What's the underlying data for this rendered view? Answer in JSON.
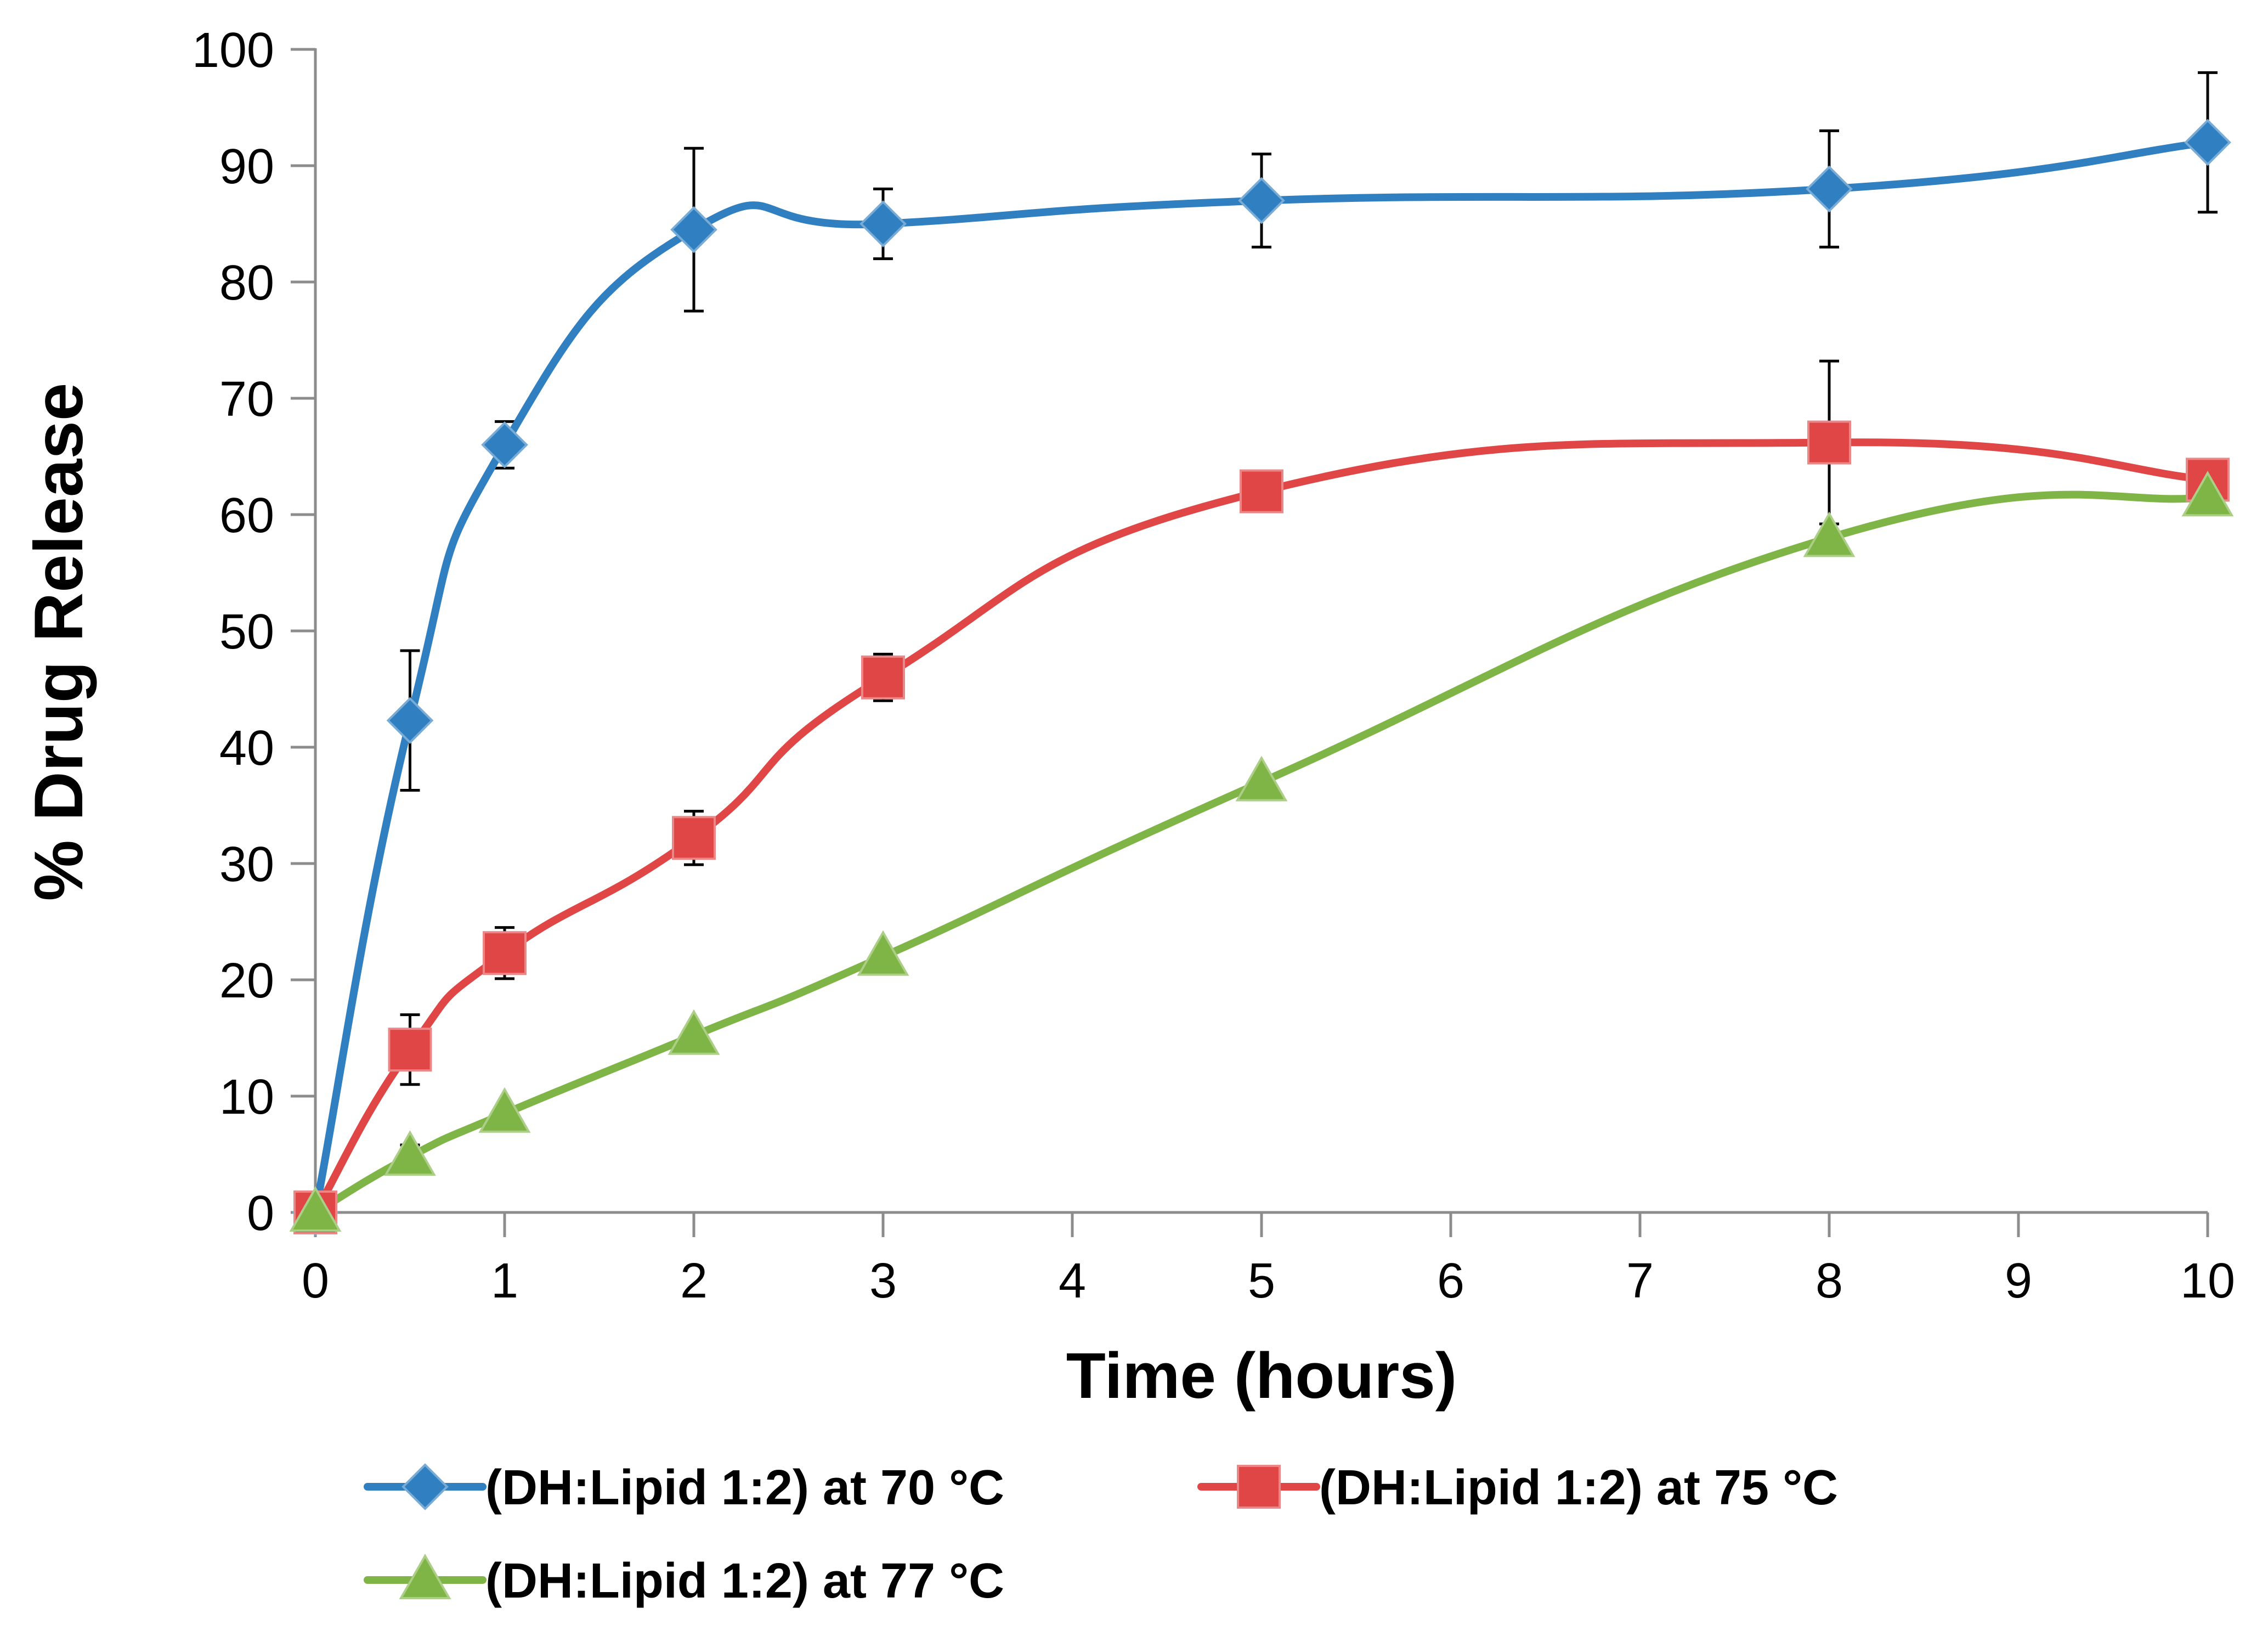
{
  "chart_data": {
    "type": "line",
    "title": "",
    "xlabel": "Time (hours)",
    "ylabel": "% Drug Release",
    "xlim": [
      0,
      10
    ],
    "ylim": [
      0,
      100
    ],
    "xticks": [
      0,
      1,
      2,
      3,
      4,
      5,
      6,
      7,
      8,
      9,
      10
    ],
    "yticks": [
      0,
      10,
      20,
      30,
      40,
      50,
      60,
      70,
      80,
      90,
      100
    ],
    "grid": false,
    "legend_position": "bottom",
    "series": [
      {
        "name": "(DH:Lipid 1:2) at 70 °C",
        "color": "#2F7FC1",
        "marker": "diamond",
        "x": [
          0,
          0.5,
          1,
          2,
          3,
          5,
          8,
          10
        ],
        "y": [
          0,
          42.3,
          66,
          84.5,
          85,
          87,
          88,
          92
        ],
        "error": [
          0,
          6,
          2,
          7,
          3,
          4,
          5,
          6
        ]
      },
      {
        "name": "(DH:Lipid 1:2) at 75 °C",
        "color": "#E04646",
        "marker": "square",
        "x": [
          0,
          0.5,
          1,
          2,
          3,
          5,
          8,
          10
        ],
        "y": [
          0,
          14,
          22.3,
          32.2,
          46,
          62,
          66.2,
          63
        ],
        "error": [
          0,
          3,
          2.2,
          2.3,
          2,
          1.5,
          7,
          0.5
        ]
      },
      {
        "name": "(DH:Lipid 1:2) at 77 °C",
        "color": "#7FB446",
        "marker": "triangle",
        "x": [
          0,
          0.5,
          1,
          2,
          3,
          5,
          8,
          10
        ],
        "y": [
          0,
          4.8,
          8.5,
          15.2,
          22,
          37,
          58,
          61.5
        ],
        "error": [
          0,
          1,
          0.5,
          0.5,
          0.5,
          0.5,
          0.5,
          0.5
        ]
      }
    ]
  }
}
